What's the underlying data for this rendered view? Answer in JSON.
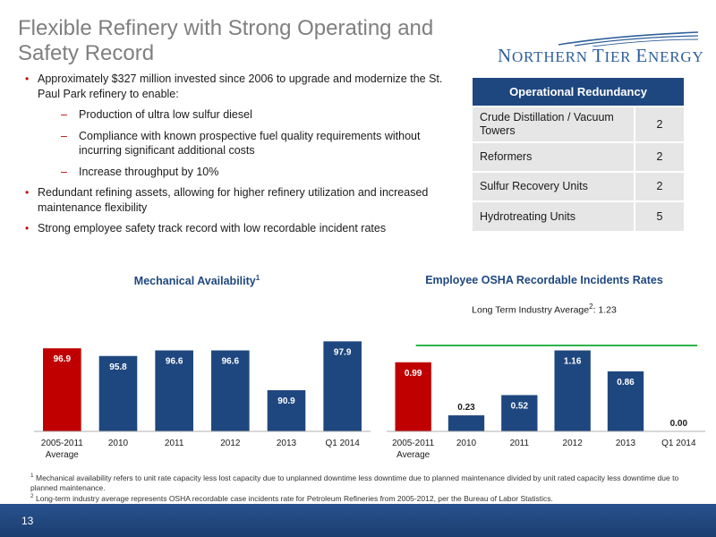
{
  "header": {
    "title_line1": "Flexible Refinery with Strong Operating and",
    "title_line2": "Safety Record"
  },
  "logo": {
    "word1_cap": "N",
    "word1_rest": "ORTHERN ",
    "word2_cap": "T",
    "word2_rest": "IER ",
    "word3_cap": "E",
    "word3_rest": "NERGY",
    "color": "#2e5f9b"
  },
  "bullets": {
    "b1": "Approximately $327 million invested since 2006 to upgrade and modernize the St. Paul Park refinery to enable:",
    "b1_subs": [
      "Production of ultra low sulfur diesel",
      "Compliance with known prospective fuel quality requirements without incurring significant additional costs",
      "Increase throughput by 10%"
    ],
    "b2": "Redundant refining assets, allowing for higher refinery utilization and increased maintenance flexibility",
    "b3": "Strong employee safety track record with low recordable incident rates"
  },
  "redundancy_table": {
    "header": "Operational Redundancy",
    "rows": [
      {
        "label": "Crude Distillation / Vacuum Towers",
        "value": "2"
      },
      {
        "label": "Reformers",
        "value": "2"
      },
      {
        "label": "Sulfur Recovery Units",
        "value": "2"
      },
      {
        "label": "Hydrotreating Units",
        "value": "5"
      }
    ]
  },
  "chart_data": [
    {
      "type": "bar",
      "title": "Mechanical Availability",
      "title_sup": "1",
      "categories": [
        "2005-2011\nAverage",
        "2010",
        "2011",
        "2012",
        "2013",
        "Q1 2014"
      ],
      "values": [
        96.9,
        95.8,
        96.6,
        96.6,
        90.9,
        97.9
      ],
      "labels": [
        "96.9",
        "95.8",
        "96.6",
        "96.6",
        "90.9",
        "97.9"
      ],
      "bar_colors": [
        "#c00000",
        "#1f477f",
        "#1f477f",
        "#1f477f",
        "#1f477f",
        "#1f477f"
      ],
      "ylim": [
        85,
        100
      ],
      "grid": false
    },
    {
      "type": "bar",
      "title": "Employee OSHA Recordable Incidents Rates",
      "categories": [
        "2005-2011\nAverage",
        "2010",
        "2011",
        "2012",
        "2013",
        "Q1 2014"
      ],
      "values": [
        0.99,
        0.23,
        0.52,
        1.16,
        0.86,
        0.0
      ],
      "labels": [
        "0.99",
        "0.23",
        "0.52",
        "1.16",
        "0.86",
        "0.00"
      ],
      "bar_colors": [
        "#c00000",
        "#1f477f",
        "#1f477f",
        "#1f477f",
        "#1f477f",
        "#1f477f"
      ],
      "ylim": [
        0,
        1.5
      ],
      "reference_line": {
        "value": 1.23,
        "label_prefix": "Long Term Industry Average",
        "label_sup": "2",
        "label_suffix": ": 1.23",
        "color": "#2db34a"
      },
      "grid": false
    }
  ],
  "footnotes": {
    "f1_sup": "1",
    "f1": "Mechanical availability refers to unit rate capacity less lost capacity due to unplanned downtime less downtime due to planned maintenance divided by unit rated capacity less downtime due to planned maintenance.",
    "f2_sup": "2",
    "f2": "Long-term industry average represents OSHA recordable case incidents rate for Petroleum Refineries from 2005-2012, per the Bureau of Labor Statistics."
  },
  "footer": {
    "page_number": "13"
  }
}
